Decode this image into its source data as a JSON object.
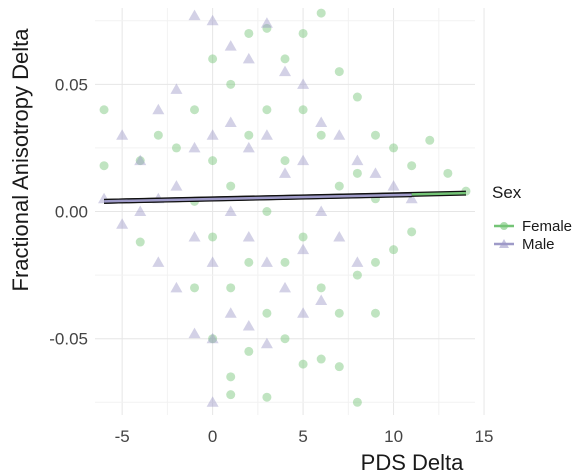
{
  "chart_data": {
    "type": "scatter",
    "title": "",
    "xlabel": "PDS Delta",
    "ylabel": "Fractional Anisotropy Delta",
    "xlim": [
      -6.5,
      14.5
    ],
    "ylim": [
      -0.08,
      0.08
    ],
    "x_ticks": [
      -5,
      0,
      5,
      10,
      15
    ],
    "x_tick_labels": [
      "-5",
      "0",
      "5",
      "10",
      "15"
    ],
    "y_ticks": [
      -0.05,
      0.0,
      0.05
    ],
    "y_tick_labels": [
      "-0.05",
      "0.00",
      "0.05"
    ],
    "grid": true,
    "legend": {
      "title": "Sex",
      "position": "right",
      "entries": [
        "Female",
        "Male"
      ]
    },
    "series": [
      {
        "name": "Female",
        "marker": "circle",
        "color": "#74c476",
        "points": [
          [
            -6,
            0.04
          ],
          [
            -6,
            0.018
          ],
          [
            -4,
            0.02
          ],
          [
            -4,
            -0.012
          ],
          [
            -3,
            0.03
          ],
          [
            -2,
            0.025
          ],
          [
            -1,
            0.04
          ],
          [
            -1,
            0.004
          ],
          [
            -1,
            -0.03
          ],
          [
            0,
            0.06
          ],
          [
            0,
            0.02
          ],
          [
            0,
            -0.01
          ],
          [
            0,
            -0.05
          ],
          [
            1,
            0.05
          ],
          [
            1,
            0.01
          ],
          [
            1,
            -0.03
          ],
          [
            1,
            -0.065
          ],
          [
            1,
            -0.072
          ],
          [
            2,
            0.07
          ],
          [
            2,
            0.03
          ],
          [
            2,
            -0.02
          ],
          [
            2,
            -0.055
          ],
          [
            3,
            0.072
          ],
          [
            3,
            0.04
          ],
          [
            3,
            0.0
          ],
          [
            3,
            -0.04
          ],
          [
            3,
            -0.073
          ],
          [
            4,
            0.06
          ],
          [
            4,
            0.02
          ],
          [
            4,
            -0.02
          ],
          [
            4,
            -0.05
          ],
          [
            5,
            0.07
          ],
          [
            5,
            0.04
          ],
          [
            5,
            -0.01
          ],
          [
            5,
            -0.06
          ],
          [
            6,
            0.078
          ],
          [
            6,
            0.03
          ],
          [
            6,
            -0.03
          ],
          [
            6,
            -0.058
          ],
          [
            7,
            0.055
          ],
          [
            7,
            0.01
          ],
          [
            7,
            -0.04
          ],
          [
            7,
            -0.061
          ],
          [
            8,
            0.045
          ],
          [
            8,
            0.015
          ],
          [
            8,
            -0.025
          ],
          [
            8,
            -0.075
          ],
          [
            9,
            0.03
          ],
          [
            9,
            0.005
          ],
          [
            9,
            -0.02
          ],
          [
            9,
            -0.04
          ],
          [
            10,
            0.025
          ],
          [
            10,
            -0.015
          ],
          [
            11,
            0.018
          ],
          [
            11,
            -0.008
          ],
          [
            12,
            0.028
          ],
          [
            13,
            0.015
          ],
          [
            14,
            0.008
          ]
        ]
      },
      {
        "name": "Male",
        "marker": "triangle",
        "color": "#9e9ac8",
        "points": [
          [
            -6,
            0.005
          ],
          [
            -5,
            0.03
          ],
          [
            -5,
            -0.005
          ],
          [
            -4,
            0.02
          ],
          [
            -4,
            0.0
          ],
          [
            -3,
            0.04
          ],
          [
            -3,
            0.005
          ],
          [
            -3,
            -0.02
          ],
          [
            -2,
            0.048
          ],
          [
            -2,
            0.01
          ],
          [
            -2,
            -0.03
          ],
          [
            -1,
            0.077
          ],
          [
            -1,
            0.025
          ],
          [
            -1,
            -0.01
          ],
          [
            -1,
            -0.048
          ],
          [
            0,
            0.075
          ],
          [
            0,
            0.03
          ],
          [
            0,
            -0.02
          ],
          [
            0,
            -0.05
          ],
          [
            0,
            -0.075
          ],
          [
            1,
            0.065
          ],
          [
            1,
            0.035
          ],
          [
            1,
            0.0
          ],
          [
            1,
            -0.04
          ],
          [
            2,
            0.06
          ],
          [
            2,
            0.025
          ],
          [
            2,
            -0.01
          ],
          [
            2,
            -0.045
          ],
          [
            3,
            0.074
          ],
          [
            3,
            0.03
          ],
          [
            3,
            -0.02
          ],
          [
            3,
            -0.052
          ],
          [
            4,
            0.055
          ],
          [
            4,
            0.015
          ],
          [
            4,
            -0.03
          ],
          [
            5,
            0.05
          ],
          [
            5,
            0.02
          ],
          [
            5,
            -0.015
          ],
          [
            5,
            -0.04
          ],
          [
            6,
            0.035
          ],
          [
            6,
            0.0
          ],
          [
            6,
            -0.035
          ],
          [
            7,
            0.03
          ],
          [
            7,
            -0.01
          ],
          [
            8,
            0.02
          ],
          [
            8,
            -0.02
          ],
          [
            9,
            0.015
          ],
          [
            10,
            0.01
          ],
          [
            11,
            0.005
          ]
        ]
      }
    ],
    "trend_lines": [
      {
        "name": "Female",
        "color": "#74c476",
        "x": [
          -6,
          14
        ],
        "y": [
          0.004,
          0.0072
        ]
      },
      {
        "name": "Male",
        "color": "#9e9ac8",
        "x": [
          -6,
          11
        ],
        "y": [
          0.004,
          0.0066
        ]
      }
    ]
  }
}
